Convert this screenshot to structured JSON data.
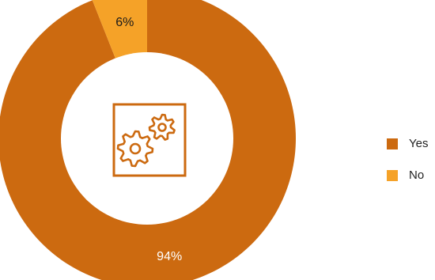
{
  "chart_data": {
    "type": "pie",
    "donut": true,
    "slices": [
      {
        "label": "Yes",
        "value": 94,
        "display": "94%",
        "color": "#CC6A10",
        "label_color": "#FFFFFF"
      },
      {
        "label": "No",
        "value": 6,
        "display": "6%",
        "color": "#F5A228",
        "label_color": "#1A1A1A"
      }
    ],
    "legend": {
      "placement": "right"
    },
    "center_icon": {
      "name": "gears-icon",
      "color": "#CC6A10"
    }
  }
}
